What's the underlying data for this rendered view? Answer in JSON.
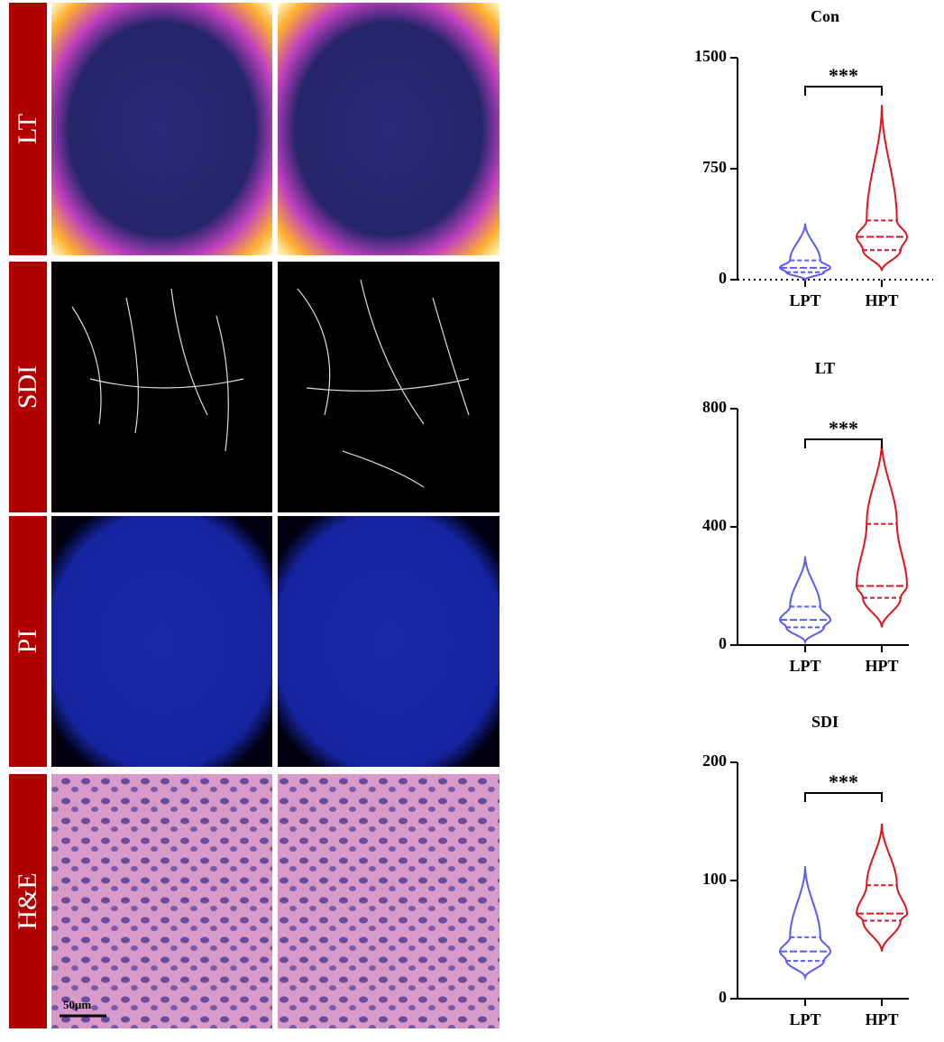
{
  "panels": {
    "row_labels": [
      "LT",
      "SDI",
      "PI",
      "H&E"
    ],
    "scale_bar": "50μm"
  },
  "chart_data": [
    {
      "type": "violin",
      "title": "Con",
      "annotation": "***",
      "zero_line": true,
      "ylim": [
        0,
        1500
      ],
      "yticks": [
        0,
        750,
        1500
      ],
      "series": [
        {
          "name": "LPT",
          "color": "#5b5bf0",
          "min": 0,
          "q1": 50,
          "median": 80,
          "q3": 130,
          "max": 380
        },
        {
          "name": "HPT",
          "color": "#e0141e",
          "min": 60,
          "q1": 200,
          "median": 290,
          "q3": 400,
          "max": 1180
        }
      ]
    },
    {
      "type": "violin",
      "title": "LT",
      "annotation": "***",
      "zero_line": false,
      "ylim": [
        0,
        800
      ],
      "yticks": [
        0,
        400,
        800
      ],
      "series": [
        {
          "name": "LPT",
          "color": "#5b5bf0",
          "min": 10,
          "q1": 60,
          "median": 85,
          "q3": 130,
          "max": 300
        },
        {
          "name": "HPT",
          "color": "#e0141e",
          "min": 60,
          "q1": 160,
          "median": 200,
          "q3": 410,
          "max": 690
        }
      ]
    },
    {
      "type": "violin",
      "title": "SDI",
      "annotation": "***",
      "zero_line": false,
      "ylim": [
        0,
        200
      ],
      "yticks": [
        0,
        100,
        200
      ],
      "series": [
        {
          "name": "LPT",
          "color": "#5b5bf0",
          "min": 18,
          "q1": 32,
          "median": 40,
          "q3": 52,
          "max": 112
        },
        {
          "name": "HPT",
          "color": "#e0141e",
          "min": 40,
          "q1": 66,
          "median": 72,
          "q3": 96,
          "max": 148
        }
      ]
    }
  ]
}
